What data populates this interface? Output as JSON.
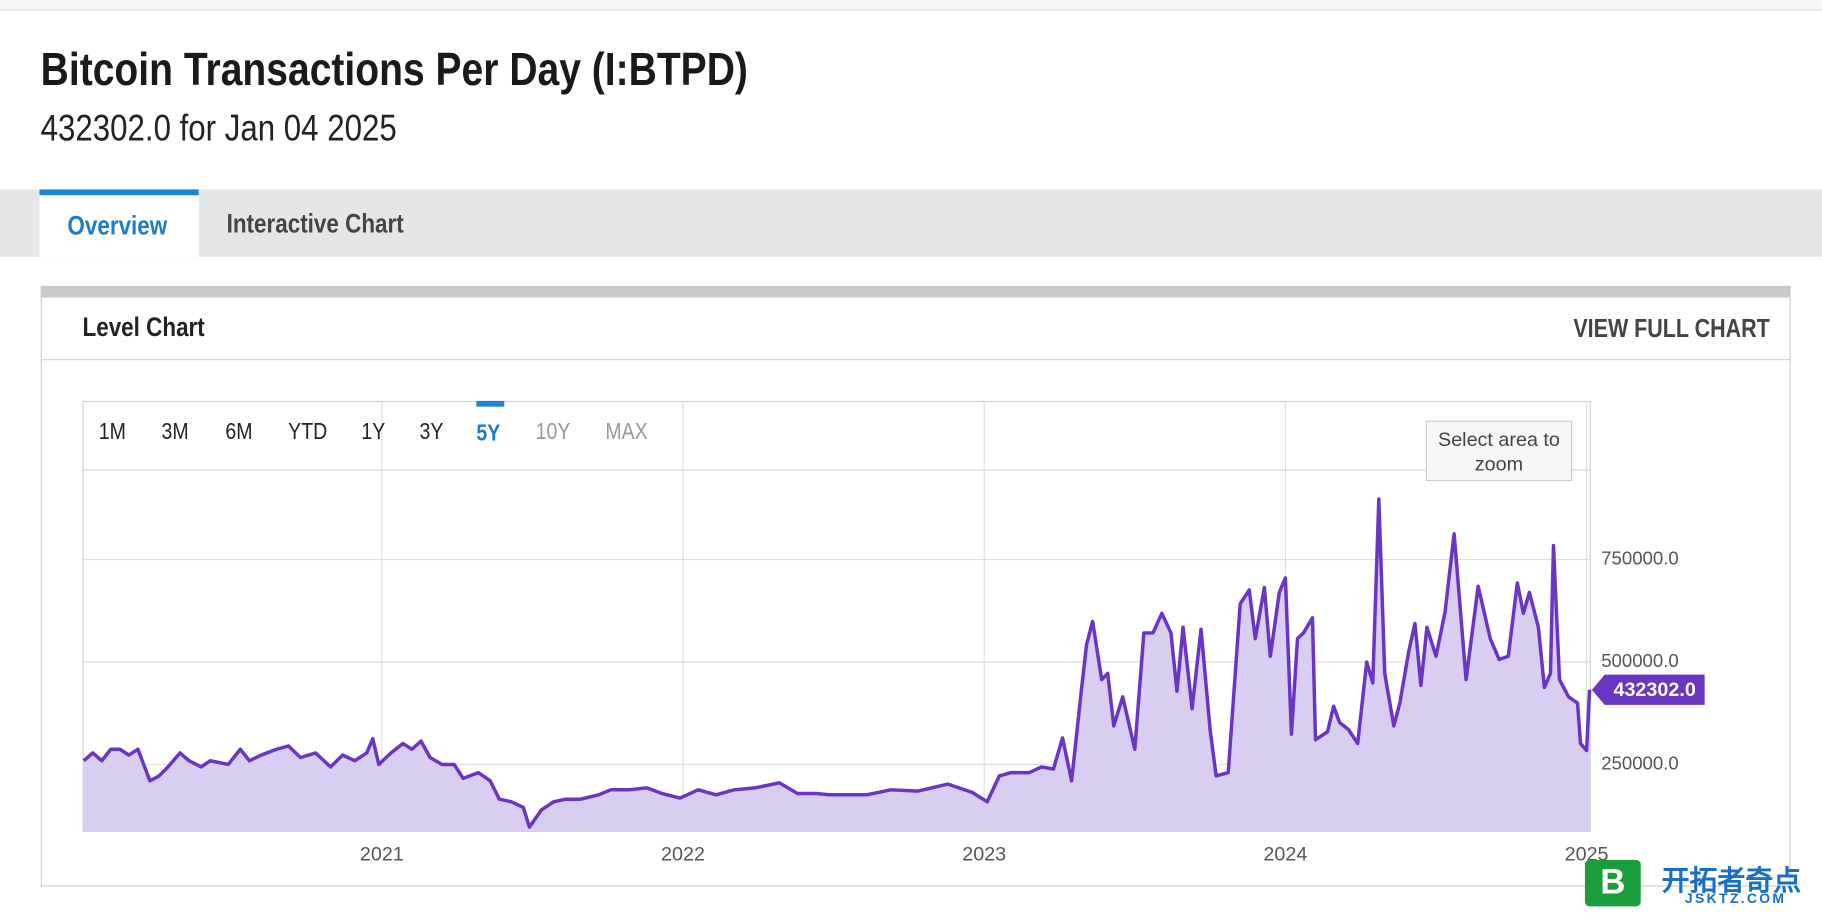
{
  "header": {
    "title": "Bitcoin Transactions Per Day (I:BTPD)",
    "subtitle": "432302.0 for Jan 04 2025"
  },
  "tabs": [
    {
      "label": "Overview",
      "state": "active"
    },
    {
      "label": "Interactive Chart",
      "state": "normal"
    }
  ],
  "panel": {
    "title": "Level Chart",
    "link": "VIEW FULL CHART"
  },
  "range_buttons": [
    {
      "label": "1M",
      "state": "normal"
    },
    {
      "label": "3M",
      "state": "normal"
    },
    {
      "label": "6M",
      "state": "normal"
    },
    {
      "label": "YTD",
      "state": "normal"
    },
    {
      "label": "1Y",
      "state": "normal"
    },
    {
      "label": "3Y",
      "state": "normal"
    },
    {
      "label": "5Y",
      "state": "active"
    },
    {
      "label": "10Y",
      "state": "disabled"
    },
    {
      "label": "MAX",
      "state": "disabled"
    }
  ],
  "zoom_hint": "Select area to zoom",
  "watermark": {
    "name": "开拓者奇点",
    "site": "JSKTZ.COM"
  },
  "chart_data": {
    "type": "area",
    "color": "#6a35c2",
    "fill": "#dacdf2",
    "grid": true,
    "x": [
      2020.01,
      2020.04,
      2020.07,
      2020.1,
      2020.13,
      2020.16,
      2020.19,
      2020.23,
      2020.26,
      2020.29,
      2020.33,
      2020.36,
      2020.4,
      2020.43,
      2020.49,
      2020.53,
      2020.56,
      2020.6,
      2020.65,
      2020.69,
      2020.73,
      2020.78,
      2020.83,
      2020.87,
      2020.91,
      2020.95,
      2020.97,
      2020.99,
      2021.03,
      2021.07,
      2021.1,
      2021.13,
      2021.16,
      2021.2,
      2021.24,
      2021.27,
      2021.32,
      2021.36,
      2021.39,
      2021.43,
      2021.47,
      2021.49,
      2021.53,
      2021.57,
      2021.61,
      2021.66,
      2021.72,
      2021.76,
      2021.82,
      2021.88,
      2021.93,
      2021.99,
      2022.05,
      2022.11,
      2022.17,
      2022.24,
      2022.32,
      2022.38,
      2022.44,
      2022.49,
      2022.55,
      2022.61,
      2022.69,
      2022.78,
      2022.88,
      2022.96,
      2023.01,
      2023.05,
      2023.09,
      2023.15,
      2023.19,
      2023.23,
      2023.26,
      2023.29,
      2023.32,
      2023.34,
      2023.36,
      2023.39,
      2023.41,
      2023.43,
      2023.46,
      2023.5,
      2023.53,
      2023.56,
      2023.59,
      2023.62,
      2023.64,
      2023.66,
      2023.69,
      2023.72,
      2023.75,
      2023.77,
      2023.81,
      2023.85,
      2023.88,
      2023.9,
      2023.93,
      2023.95,
      2023.98,
      2024.0,
      2024.02,
      2024.04,
      2024.06,
      2024.09,
      2024.1,
      2024.14,
      2024.16,
      2024.18,
      2024.21,
      2024.24,
      2024.27,
      2024.29,
      2024.31,
      2024.33,
      2024.36,
      2024.38,
      2024.41,
      2024.43,
      2024.45,
      2024.47,
      2024.5,
      2024.53,
      2024.56,
      2024.6,
      2024.64,
      2024.68,
      2024.71,
      2024.74,
      2024.77,
      2024.79,
      2024.81,
      2024.84,
      2024.86,
      2024.88,
      2024.89,
      2024.91,
      2024.94,
      2024.97,
      2024.98,
      2025.0,
      2025.01
    ],
    "values": [
      259000,
      278000,
      259000,
      287000,
      287000,
      273000,
      287000,
      210000,
      222000,
      244000,
      278000,
      259000,
      244000,
      259000,
      250000,
      287000,
      259000,
      273000,
      287000,
      295000,
      267000,
      278000,
      244000,
      273000,
      259000,
      278000,
      313000,
      250000,
      278000,
      301000,
      287000,
      307000,
      267000,
      250000,
      250000,
      216000,
      230000,
      210000,
      165000,
      159000,
      145000,
      97000,
      139000,
      159000,
      165000,
      165000,
      176000,
      188000,
      188000,
      193000,
      179000,
      168000,
      188000,
      176000,
      188000,
      193000,
      205000,
      179000,
      179000,
      176000,
      176000,
      176000,
      188000,
      185000,
      202000,
      182000,
      159000,
      222000,
      230000,
      230000,
      244000,
      239000,
      315000,
      210000,
      415000,
      543000,
      599000,
      457000,
      472000,
      344000,
      415000,
      287000,
      571000,
      571000,
      619000,
      571000,
      429000,
      585000,
      386000,
      580000,
      335000,
      222000,
      230000,
      642000,
      676000,
      557000,
      682000,
      514000,
      670000,
      705000,
      324000,
      557000,
      571000,
      608000,
      310000,
      330000,
      392000,
      352000,
      335000,
      301000,
      500000,
      449000,
      898000,
      472000,
      344000,
      400000,
      528000,
      594000,
      443000,
      585000,
      514000,
      622000,
      813000,
      457000,
      685000,
      557000,
      506000,
      514000,
      693000,
      619000,
      670000,
      585000,
      438000,
      472000,
      784000,
      457000,
      415000,
      400000,
      301000,
      284000,
      432302
    ],
    "last_value_label": "432302.0",
    "xlim": [
      2020.01,
      2025.01
    ],
    "xticks": [
      2021,
      2022,
      2023,
      2024,
      2025
    ],
    "ylim": [
      88000,
      970000
    ],
    "yticks": [
      {
        "value": 250000,
        "label": "250000.0"
      },
      {
        "value": 500000,
        "label": "500000.0"
      },
      {
        "value": 750000,
        "label": "750000.0"
      }
    ]
  }
}
